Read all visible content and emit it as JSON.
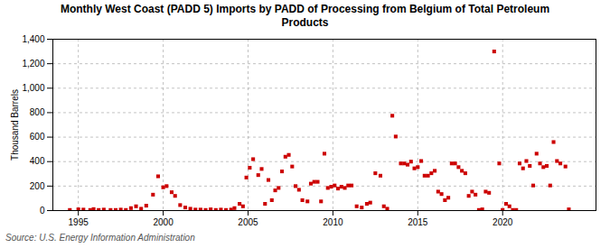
{
  "chart_data": {
    "type": "scatter",
    "title": "Monthly West Coast (PADD 5) Imports by PADD of Processing from Belgium of Total Petroleum\nProducts",
    "ylabel": "Thousand Barrels",
    "annotations": [
      "Source: U.S. Energy Information Administration"
    ],
    "color": "#cc0000",
    "marker": "square",
    "grid": true,
    "xlim": [
      1993.5,
      2025.5
    ],
    "xticks": [
      1995,
      2000,
      2005,
      2010,
      2015,
      2020
    ],
    "ylim": [
      0,
      1400
    ],
    "yticks": [
      0,
      200,
      400,
      600,
      800,
      {
        "value": 1000,
        "label": "1,000"
      },
      {
        "value": 1200,
        "label": "1,200"
      },
      {
        "value": 1400,
        "label": "1,400"
      }
    ],
    "x": [
      1994.5,
      1995.0,
      1995.3,
      1995.7,
      1995.9,
      1996.2,
      1996.5,
      1996.9,
      1997.2,
      1997.5,
      1997.8,
      1998.1,
      1998.4,
      1998.7,
      1999.0,
      1999.4,
      1999.7,
      2000.0,
      2000.2,
      2000.5,
      2000.7,
      2001.0,
      2001.3,
      2001.6,
      2001.9,
      2002.2,
      2002.5,
      2002.8,
      2003.1,
      2003.4,
      2003.7,
      2004.0,
      2004.2,
      2004.5,
      2004.7,
      2004.9,
      2005.1,
      2005.3,
      2005.6,
      2005.8,
      2006.0,
      2006.2,
      2006.4,
      2006.6,
      2006.8,
      2007.0,
      2007.2,
      2007.4,
      2007.6,
      2007.8,
      2008.0,
      2008.2,
      2008.5,
      2008.7,
      2008.9,
      2009.1,
      2009.3,
      2009.5,
      2009.7,
      2009.9,
      2010.1,
      2010.3,
      2010.5,
      2010.7,
      2010.9,
      2011.1,
      2011.4,
      2011.7,
      2012.0,
      2012.2,
      2012.5,
      2012.8,
      2013.0,
      2013.2,
      2013.5,
      2013.7,
      2014.0,
      2014.2,
      2014.4,
      2014.6,
      2014.8,
      2015.0,
      2015.2,
      2015.4,
      2015.6,
      2015.8,
      2016.0,
      2016.2,
      2016.4,
      2016.6,
      2016.8,
      2017.0,
      2017.2,
      2017.4,
      2017.6,
      2017.8,
      2018.0,
      2018.2,
      2018.4,
      2018.6,
      2018.8,
      2019.0,
      2019.2,
      2019.5,
      2019.8,
      2020.0,
      2020.2,
      2020.4,
      2020.6,
      2020.8,
      2021.0,
      2021.2,
      2021.4,
      2021.6,
      2021.8,
      2022.0,
      2022.2,
      2022.4,
      2022.6,
      2022.8,
      2023.0,
      2023.2,
      2023.4,
      2023.7,
      2023.9
    ],
    "values": [
      5,
      10,
      8,
      5,
      12,
      5,
      8,
      5,
      5,
      8,
      5,
      20,
      35,
      15,
      40,
      130,
      280,
      190,
      200,
      150,
      120,
      45,
      25,
      15,
      8,
      8,
      5,
      10,
      5,
      8,
      5,
      8,
      20,
      55,
      35,
      270,
      350,
      420,
      290,
      340,
      55,
      250,
      85,
      165,
      185,
      320,
      440,
      455,
      360,
      200,
      170,
      85,
      75,
      220,
      235,
      235,
      75,
      465,
      185,
      195,
      205,
      180,
      195,
      185,
      205,
      205,
      35,
      25,
      55,
      65,
      305,
      285,
      35,
      15,
      775,
      605,
      385,
      385,
      375,
      400,
      345,
      355,
      405,
      285,
      285,
      305,
      325,
      155,
      135,
      85,
      105,
      385,
      385,
      355,
      325,
      305,
      120,
      155,
      130,
      5,
      10,
      155,
      145,
      1300,
      385,
      5,
      55,
      35,
      5,
      5,
      385,
      345,
      405,
      365,
      205,
      465,
      385,
      355,
      365,
      205,
      560,
      405,
      385,
      360,
      10
    ]
  }
}
